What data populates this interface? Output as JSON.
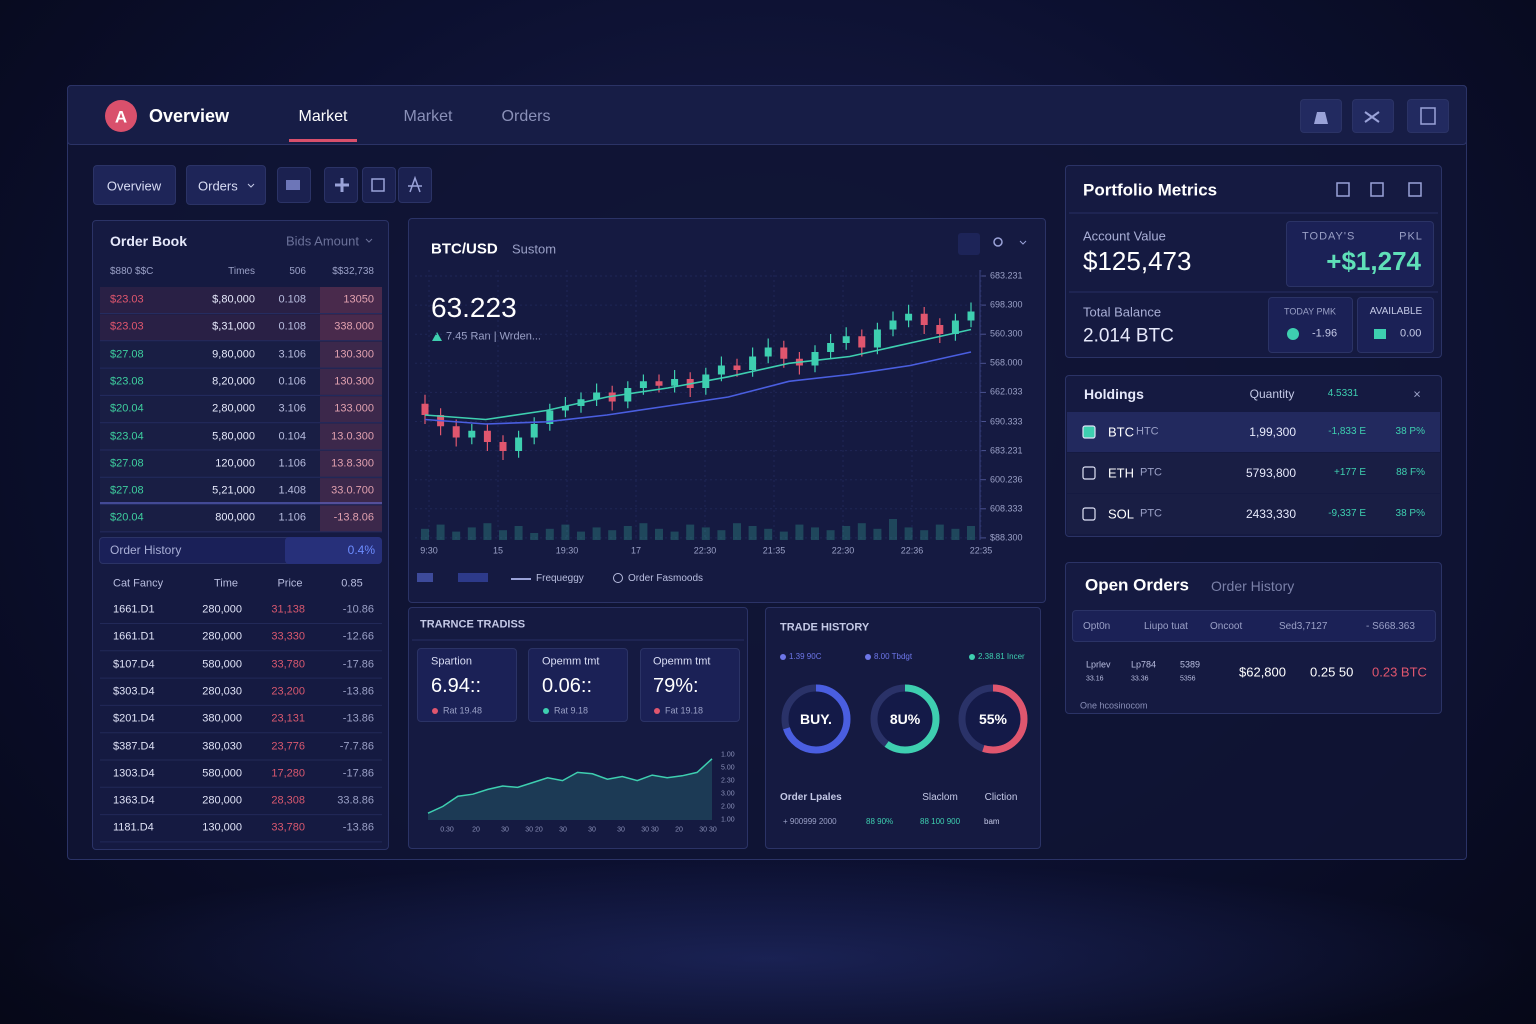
{
  "nav": {
    "logo": "A",
    "title": "Overview",
    "tabs": [
      "Market",
      "Market",
      "Orders"
    ]
  },
  "toolbar": {
    "buttons": [
      "Overview",
      "Orders"
    ]
  },
  "order_book": {
    "title": "Order Book",
    "filter": "Bids Amount",
    "headers": [
      "$880 $$C",
      "Times",
      "506",
      "$$32,738"
    ],
    "rows": [
      {
        "cells": [
          "$23.03",
          "$,80,000",
          "0.108",
          "13050"
        ],
        "color": "#e0566e"
      },
      {
        "cells": [
          "$23.03",
          "$,31,000",
          "0.108",
          "338.000"
        ],
        "color": "#e0566e"
      },
      {
        "cells": [
          "$27.08",
          "9,80,000",
          "3.106",
          "130.300"
        ],
        "color": "#3ecf9f"
      },
      {
        "cells": [
          "$23.08",
          "8,20,000",
          "0.106",
          "130.300"
        ],
        "color": "#3ecf9f"
      },
      {
        "cells": [
          "$20.04",
          "2,80,000",
          "3.106",
          "133.000"
        ],
        "color": "#3ecf9f"
      },
      {
        "cells": [
          "$23.04",
          "5,80,000",
          "0.104",
          "13.0.300"
        ],
        "color": "#3ecf9f"
      },
      {
        "cells": [
          "$27.08",
          "120,000",
          "1.106",
          "13.8.300"
        ],
        "color": "#3ecf9f"
      },
      {
        "cells": [
          "$27.08",
          "5,21,000",
          "1.408",
          "33.0.700"
        ],
        "color": "#3ecf9f"
      },
      {
        "cells": [
          "$20.04",
          "800,000",
          "1.106",
          "-13.8.06"
        ],
        "color": "#3ecf9f"
      }
    ]
  },
  "order_history": {
    "label": "Order History",
    "value": "0.4%"
  },
  "trades": {
    "headers": [
      "Cat Fancy",
      "Time",
      "Price",
      "0.85"
    ],
    "rows": [
      [
        "1661.D1",
        "280,000",
        "31,138",
        "-10.86"
      ],
      [
        "1661.D1",
        "280,000",
        "33,330",
        "-12.66"
      ],
      [
        "$107.D4",
        "580,000",
        "33,780",
        "-17.86"
      ],
      [
        "$303.D4",
        "280,030",
        "23,200",
        "-13.86"
      ],
      [
        "$201.D4",
        "380,000",
        "23,131",
        "-13.86"
      ],
      [
        "$387.D4",
        "380,030",
        "23,776",
        "-7.7.86"
      ],
      [
        "1303.D4",
        "580,000",
        "17,280",
        "-17.86"
      ],
      [
        "1363.D4",
        "280,000",
        "28,308",
        "33.8.86"
      ],
      [
        "1181.D4",
        "130,000",
        "33,780",
        "-13.86"
      ]
    ]
  },
  "chart": {
    "pair": "BTC/USD",
    "mode": "Sustom",
    "price": "63.223",
    "note": "7.45 Ran | Wrden...",
    "axis_labels": [
      "683.231",
      "698.300",
      "560.300",
      "568.000",
      "662.033",
      "690.333",
      "683.231",
      "600.236",
      "608.333",
      "$88.300"
    ],
    "time_labels": [
      "9:30",
      "15",
      "19:30",
      "17",
      "22:30",
      "21:35",
      "22:30",
      "22:36",
      "22:35"
    ],
    "legend": [
      "Frequeggy",
      "Order Fasmoods"
    ],
    "ylim": [
      0,
      100
    ],
    "up_color": "#3ecfb0",
    "down_color": "#e0566e",
    "candles": [
      [
        45,
        49,
        36,
        40
      ],
      [
        40,
        43,
        31,
        35
      ],
      [
        35,
        38,
        26,
        30
      ],
      [
        30,
        36,
        27,
        33
      ],
      [
        33,
        36,
        24,
        28
      ],
      [
        28,
        31,
        20,
        24
      ],
      [
        24,
        33,
        21,
        30
      ],
      [
        30,
        39,
        27,
        36
      ],
      [
        36,
        45,
        33,
        42
      ],
      [
        42,
        48,
        39,
        44
      ],
      [
        44,
        50,
        41,
        47
      ],
      [
        47,
        54,
        44,
        50
      ],
      [
        50,
        53,
        42,
        46
      ],
      [
        46,
        55,
        43,
        52
      ],
      [
        52,
        58,
        49,
        55
      ],
      [
        55,
        58,
        50,
        53
      ],
      [
        53,
        60,
        50,
        56
      ],
      [
        56,
        59,
        48,
        52
      ],
      [
        52,
        61,
        49,
        58
      ],
      [
        58,
        66,
        55,
        62
      ],
      [
        62,
        65,
        57,
        60
      ],
      [
        60,
        70,
        57,
        66
      ],
      [
        66,
        74,
        63,
        70
      ],
      [
        70,
        73,
        61,
        65
      ],
      [
        65,
        68,
        58,
        62
      ],
      [
        62,
        71,
        59,
        68
      ],
      [
        68,
        76,
        65,
        72
      ],
      [
        72,
        79,
        69,
        75
      ],
      [
        75,
        78,
        66,
        70
      ],
      [
        70,
        81,
        67,
        78
      ],
      [
        78,
        86,
        75,
        82
      ],
      [
        82,
        89,
        79,
        85
      ],
      [
        85,
        88,
        76,
        80
      ],
      [
        80,
        83,
        72,
        76
      ],
      [
        76,
        85,
        73,
        82
      ],
      [
        82,
        90,
        79,
        86
      ]
    ],
    "ma_fast": [
      40,
      38,
      42,
      48,
      52,
      57,
      63,
      66,
      72,
      78
    ],
    "ma_fast_color": "#3ecfb0",
    "ma_slow": [
      38,
      36,
      37,
      40,
      44,
      48,
      55,
      58,
      62,
      68
    ],
    "ma_slow_color": "#4a5ee0",
    "volume": [
      40,
      55,
      30,
      45,
      60,
      35,
      50,
      25,
      40,
      55,
      30,
      45,
      35,
      50,
      60,
      40,
      30,
      55,
      45,
      35,
      60,
      50,
      40,
      30,
      55,
      45,
      35,
      50,
      60,
      40,
      75,
      45,
      35,
      55,
      40,
      50
    ],
    "volume_lim": [
      0,
      100
    ]
  },
  "trance": {
    "title": "TRARNCE TRADISS",
    "cards": [
      {
        "label": "Spartion",
        "value": "6.94::",
        "foot": "Rat 19.48"
      },
      {
        "label": "Opemm tmt",
        "value": "0.06::",
        "foot": "Rat 9.18"
      },
      {
        "label": "Opemm tmt",
        "value": "79%:",
        "foot": "Fat 19.18"
      }
    ],
    "sparkline": [
      10,
      20,
      35,
      38,
      45,
      50,
      48,
      55,
      62,
      58,
      70,
      68,
      60,
      64,
      58,
      66,
      62,
      65,
      70,
      90
    ],
    "sparkline_lim": [
      0,
      100
    ],
    "x_labels": [
      "0.30",
      "20",
      "30",
      "30 20",
      "30",
      "30",
      "30",
      "30 30",
      "20",
      "30 30"
    ],
    "y_labels": [
      "1.00",
      "5.00",
      "2.30",
      "3.00",
      "2.00",
      "1.00"
    ]
  },
  "trade_history": {
    "title": "TRADE HISTORY",
    "filters": [
      "1.39 90C",
      "8.00 Tbdgt",
      "2.38.81 Incer"
    ],
    "gauges": [
      {
        "label": "BUY.",
        "fill": 70,
        "color": "#4a5ee0"
      },
      {
        "label": "8U%",
        "fill": 60,
        "color": "#3ecfb0"
      },
      {
        "label": "55%",
        "fill": 55,
        "color": "#e0566e"
      }
    ],
    "footer": [
      "Order Lpales",
      "Slaclom",
      "Cliction"
    ],
    "details": [
      "+ 900999 2000",
      "88 90%",
      "88 100 900",
      "bam"
    ]
  },
  "portfolio": {
    "title": "Portfolio Metrics",
    "account_label": "Account Value",
    "account_value": "$125,473",
    "today_label": "TODAY'S",
    "pnl_label": "PKL",
    "today_value": "+$1,274",
    "balance_label": "Total Balance",
    "balance_value": "2.014 BTC",
    "today_pmk_label": "TODAY PMK",
    "today_pmk_value": "-1.96",
    "available_label": "AVAILABLE",
    "available_value": "0.00"
  },
  "holdings": {
    "title": "Holdings",
    "headers": [
      "Quantity",
      "4.5331"
    ],
    "close": "×",
    "rows": [
      {
        "name": "BTC",
        "symbol": "HTC",
        "quantity": "1,99,300",
        "change": "-1,833 E",
        "pct": "38 P%"
      },
      {
        "name": "ETH",
        "symbol": "PTC",
        "quantity": "5793,800",
        "change": "+177 E",
        "pct": "88 F%"
      },
      {
        "name": "SOL",
        "symbol": "PTC",
        "quantity": "2433,330",
        "change": "-9,337 E",
        "pct": "38 P%"
      }
    ]
  },
  "open_orders": {
    "tabs": [
      "Open Orders",
      "Order History"
    ],
    "filters": [
      "Opt0n",
      "Liupo tuat",
      "Oncoot",
      "Sed3,7127",
      "- S668.363"
    ],
    "row": [
      "Lprlev",
      "33.16",
      "Lp784",
      "33.36",
      "5389",
      "5356",
      "$62,800",
      "0.25 50",
      "0.23 BTC"
    ],
    "footer": "One hcosinocom"
  }
}
